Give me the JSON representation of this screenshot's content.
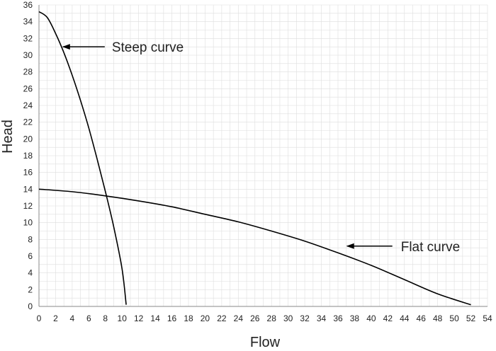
{
  "chart_data": {
    "type": "line",
    "title": "",
    "xlabel": "Flow",
    "ylabel": "Head",
    "xlim": [
      0,
      54
    ],
    "ylim": [
      0,
      36
    ],
    "x_ticks": [
      0,
      2,
      4,
      6,
      8,
      10,
      12,
      14,
      16,
      18,
      20,
      22,
      24,
      26,
      28,
      30,
      32,
      34,
      36,
      38,
      40,
      42,
      44,
      46,
      48,
      50,
      52,
      54
    ],
    "y_ticks": [
      0,
      2,
      4,
      6,
      8,
      10,
      12,
      14,
      16,
      18,
      20,
      22,
      24,
      26,
      28,
      30,
      32,
      34,
      36
    ],
    "grid": true,
    "minor_grid": true,
    "series": [
      {
        "label": "Steep curve",
        "x": [
          0,
          1,
          2,
          3,
          4,
          5,
          6,
          7,
          8,
          9,
          10,
          10.5
        ],
        "y": [
          35.2,
          34.5,
          32.6,
          30.3,
          27.6,
          24.6,
          21.3,
          17.6,
          13.7,
          9.5,
          4.5,
          0.2
        ]
      },
      {
        "label": "Flat curve",
        "x": [
          0,
          4,
          8,
          12,
          16,
          20,
          24,
          28,
          32,
          36,
          40,
          44,
          48,
          52
        ],
        "y": [
          14.0,
          13.7,
          13.2,
          12.6,
          11.9,
          11.0,
          10.1,
          9.0,
          7.8,
          6.4,
          4.9,
          3.2,
          1.5,
          0.2
        ]
      }
    ],
    "annotations": [
      {
        "text": "Steep curve",
        "target": [
          2.8,
          31.0
        ]
      },
      {
        "text": "Flat curve",
        "target": [
          37.0,
          7.2
        ]
      }
    ],
    "colors": {
      "line": "#000000",
      "grid": "#dedede",
      "background": "#ffffff",
      "text": "#222222"
    }
  }
}
